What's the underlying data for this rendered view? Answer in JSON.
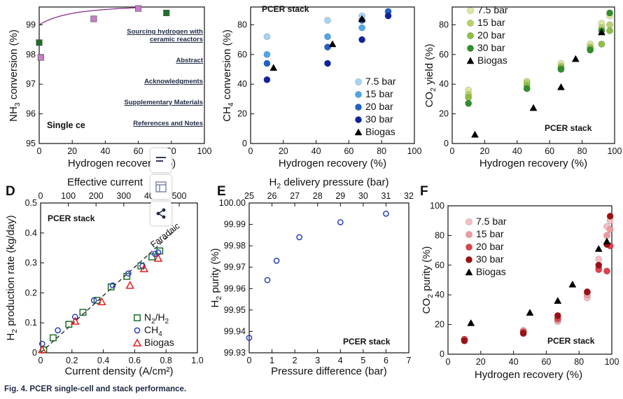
{
  "caption": "Fig. 4. PCER single-cell and stack performance.",
  "nav_links": [
    "Sourcing hydrogen with ceramic reactors",
    "Abstract",
    "Acknowledgments",
    "Supplementary Materials",
    "References and Notes"
  ],
  "overlay_text": "Single ce",
  "toolbar_icons": [
    "text-view-icon",
    "table-icon",
    "share-icon"
  ],
  "colors": {
    "blue_light": "#a8d4f4",
    "blue_mid": "#4fa6e6",
    "blue_dark": "#1f62c9",
    "blue_navy": "#10229e",
    "green_light": "#dbe8a0",
    "green_mid": "#b6d267",
    "green_dark": "#8fbf45",
    "green_deep": "#2f8f2a",
    "red_light": "#f6c0c4",
    "red_mid": "#f09aa0",
    "red_dark": "#e0404a",
    "red_deep": "#9e0f14",
    "magenta": "#c87ec8",
    "green_square": "#1e6e2a"
  },
  "chart_data": [
    {
      "panel": "A",
      "type": "scatter",
      "xlabel": "Hydrogen recovery (%)",
      "ylabel": "NH3 conversion (%)",
      "xlim": [
        0,
        100
      ],
      "ylim": [
        95,
        99.6
      ],
      "xticks": [
        0,
        20,
        40,
        60,
        80,
        100
      ],
      "yticks": [
        95,
        96,
        97,
        98,
        99
      ],
      "series": [
        {
          "marker": "square",
          "color": "#c87ec8",
          "points": [
            [
              1,
              97.9
            ],
            [
              33,
              99.2
            ],
            [
              60,
              99.55
            ]
          ]
        },
        {
          "marker": "square",
          "color": "#1e6e2a",
          "points": [
            [
              0,
              98.4
            ],
            [
              77,
              99.4
            ]
          ]
        }
      ]
    },
    {
      "panel": "B",
      "type": "scatter",
      "title": "PCER stack",
      "xlabel": "Hydrogen recovery (%)",
      "ylabel": "CH4 conversion (%)",
      "xlim": [
        0,
        100
      ],
      "ylim": [
        0,
        92
      ],
      "xticks": [
        0,
        20,
        40,
        60,
        80,
        100
      ],
      "yticks": [
        0,
        20,
        40,
        60,
        80
      ],
      "series": [
        {
          "name": "7.5 bar",
          "marker": "circle",
          "color": "#a8d4f4",
          "points": [
            [
              10,
              72
            ],
            [
              47,
              83
            ],
            [
              68,
              86
            ]
          ]
        },
        {
          "name": "15 bar",
          "marker": "circle",
          "color": "#4fa6e6",
          "points": [
            [
              10,
              60
            ],
            [
              47,
              72
            ],
            [
              68,
              78
            ]
          ]
        },
        {
          "name": "20 bar",
          "marker": "circle",
          "color": "#1f62c9",
          "points": [
            [
              10,
              54
            ],
            [
              47,
              65
            ],
            [
              68,
              83
            ],
            [
              84,
              89
            ]
          ]
        },
        {
          "name": "30 bar",
          "marker": "circle",
          "color": "#10229e",
          "points": [
            [
              10,
              43
            ],
            [
              47,
              54
            ],
            [
              68,
              70
            ],
            [
              84,
              86
            ]
          ]
        },
        {
          "name": "Biogas",
          "marker": "triangle",
          "color": "#000000",
          "points": [
            [
              14,
              51
            ],
            [
              50,
              67
            ],
            [
              68,
              84
            ]
          ]
        }
      ]
    },
    {
      "panel": "C",
      "type": "scatter",
      "title": "PCER stack",
      "xlabel": "Hydrogen recovery (%)",
      "ylabel": "CO2 yield (%)",
      "xlim": [
        0,
        100
      ],
      "ylim": [
        0,
        92
      ],
      "xticks": [
        0,
        20,
        40,
        60,
        80,
        100
      ],
      "yticks": [
        0,
        20,
        40,
        60,
        80
      ],
      "series": [
        {
          "name": "7.5 bar",
          "marker": "circle",
          "color": "#dbe8a0",
          "points": [
            [
              10,
              36
            ],
            [
              46,
              42
            ],
            [
              67,
              54
            ],
            [
              85,
              67
            ],
            [
              92,
              81
            ],
            [
              97,
              86
            ]
          ]
        },
        {
          "name": "15 bar",
          "marker": "circle",
          "color": "#b6d267",
          "points": [
            [
              10,
              33
            ],
            [
              46,
              41
            ],
            [
              67,
              52
            ],
            [
              85,
              65
            ],
            [
              92,
              78
            ],
            [
              97,
              80
            ]
          ]
        },
        {
          "name": "20 bar",
          "marker": "circle",
          "color": "#8fbf45",
          "points": [
            [
              10,
              31
            ],
            [
              46,
              39
            ],
            [
              67,
              51
            ],
            [
              85,
              64
            ],
            [
              92,
              67
            ],
            [
              97,
              76
            ]
          ]
        },
        {
          "name": "30 bar",
          "marker": "circle",
          "color": "#2f8f2a",
          "points": [
            [
              10,
              27
            ],
            [
              46,
              37
            ],
            [
              67,
              50
            ],
            [
              85,
              63
            ],
            [
              92,
              76
            ],
            [
              97,
              88
            ]
          ]
        },
        {
          "name": "Biogas",
          "marker": "triangle",
          "color": "#000000",
          "points": [
            [
              14,
              6
            ],
            [
              50,
              24
            ],
            [
              67,
              38
            ],
            [
              76,
              57
            ],
            [
              92,
              75
            ]
          ]
        }
      ]
    },
    {
      "panel": "D",
      "type": "scatter",
      "title": "PCER stack",
      "xlabel": "Current density (A/cm²)",
      "ylabel": "H2 production rate (kg/day)",
      "top_axis_label": "Effective current",
      "annotation": "Faradaic",
      "xlim": [
        0,
        1.0
      ],
      "ylim": [
        0,
        0.5
      ],
      "xticks": [
        0,
        0.2,
        0.4,
        0.6,
        0.8,
        1.0
      ],
      "yticks": [
        0,
        0.1,
        0.2,
        0.3,
        0.4,
        0.5
      ],
      "top_ticks": [
        0,
        100,
        200,
        300,
        400,
        500
      ],
      "series": [
        {
          "name": "N2/H2",
          "marker": "square",
          "color": "#1e6e2a",
          "points": [
            [
              0.02,
              0.01
            ],
            [
              0.08,
              0.05
            ],
            [
              0.18,
              0.095
            ],
            [
              0.27,
              0.135
            ],
            [
              0.36,
              0.175
            ],
            [
              0.45,
              0.22
            ],
            [
              0.55,
              0.255
            ],
            [
              0.64,
              0.29
            ],
            [
              0.71,
              0.32
            ],
            [
              0.76,
              0.34
            ]
          ]
        },
        {
          "name": "CH4",
          "marker": "circle",
          "color": "#2a3fbf",
          "points": [
            [
              0.01,
              0.03
            ],
            [
              0.11,
              0.075
            ],
            [
              0.22,
              0.12
            ],
            [
              0.34,
              0.175
            ],
            [
              0.46,
              0.225
            ],
            [
              0.56,
              0.265
            ],
            [
              0.65,
              0.29
            ],
            [
              0.73,
              0.33
            ],
            [
              0.75,
              0.335
            ]
          ]
        },
        {
          "name": "Biogas",
          "marker": "triangle",
          "color": "#e02020",
          "points": [
            [
              0.01,
              0.01
            ],
            [
              0.22,
              0.105
            ],
            [
              0.39,
              0.17
            ],
            [
              0.57,
              0.225
            ],
            [
              0.66,
              0.28
            ],
            [
              0.75,
              0.315
            ]
          ]
        }
      ]
    },
    {
      "panel": "E",
      "type": "scatter",
      "title": "PCER stack",
      "xlabel": "Pressure difference (bar)",
      "ylabel": "H2 purity (%)",
      "top_axis_label": "H2 delivery pressure (bar)",
      "xlim": [
        0,
        7
      ],
      "ylim": [
        99.93,
        100.0
      ],
      "xticks": [
        0,
        1,
        2,
        3,
        4,
        5,
        6,
        7
      ],
      "yticks": [
        99.93,
        99.94,
        99.95,
        99.96,
        99.97,
        99.98,
        99.99,
        100.0
      ],
      "top_ticks": [
        25,
        26,
        27,
        28,
        29,
        30,
        31,
        32
      ],
      "series": [
        {
          "marker": "circle",
          "color": "#2a3fbf",
          "points": [
            [
              0,
              99.937
            ],
            [
              0.8,
              99.964
            ],
            [
              1.2,
              99.973
            ],
            [
              2.2,
              99.984
            ],
            [
              4.0,
              99.991
            ],
            [
              6.0,
              99.995
            ]
          ]
        }
      ]
    },
    {
      "panel": "F",
      "type": "scatter",
      "title": "PCER stack",
      "xlabel": "Hydrogen recovery (%)",
      "ylabel": "CO2 purity (%)",
      "xlim": [
        0,
        100
      ],
      "ylim": [
        0,
        100
      ],
      "xticks": [
        0,
        20,
        40,
        60,
        80,
        100
      ],
      "yticks": [
        0,
        20,
        40,
        60,
        80,
        100
      ],
      "series": [
        {
          "name": "7.5 bar",
          "marker": "circle",
          "color": "#f6c0c4",
          "points": [
            [
              10,
              10
            ],
            [
              46,
              15
            ],
            [
              67,
              22
            ],
            [
              85,
              38
            ],
            [
              92,
              64
            ],
            [
              97,
              86
            ],
            [
              99,
              90
            ]
          ]
        },
        {
          "name": "15 bar",
          "marker": "circle",
          "color": "#f09aa0",
          "points": [
            [
              10,
              10
            ],
            [
              46,
              16
            ],
            [
              67,
              23
            ],
            [
              85,
              40
            ],
            [
              92,
              58
            ],
            [
              97,
              80
            ],
            [
              99,
              84
            ]
          ]
        },
        {
          "name": "20 bar",
          "marker": "circle",
          "color": "#e0404a",
          "points": [
            [
              10,
              10
            ],
            [
              46,
              15
            ],
            [
              67,
              24
            ],
            [
              85,
              42
            ],
            [
              92,
              57
            ],
            [
              97,
              56
            ],
            [
              99,
              73
            ]
          ]
        },
        {
          "name": "30 bar",
          "marker": "circle",
          "color": "#9e0f14",
          "points": [
            [
              10,
              9
            ],
            [
              46,
              14
            ],
            [
              67,
              26
            ],
            [
              85,
              42
            ],
            [
              92,
              60
            ],
            [
              97,
              74
            ],
            [
              99,
              93
            ]
          ]
        },
        {
          "name": "Biogas",
          "marker": "triangle",
          "color": "#000000",
          "points": [
            [
              14,
              21
            ],
            [
              50,
              28
            ],
            [
              67,
              36
            ],
            [
              76,
              47
            ],
            [
              92,
              71
            ],
            [
              97,
              76
            ]
          ]
        }
      ]
    }
  ]
}
